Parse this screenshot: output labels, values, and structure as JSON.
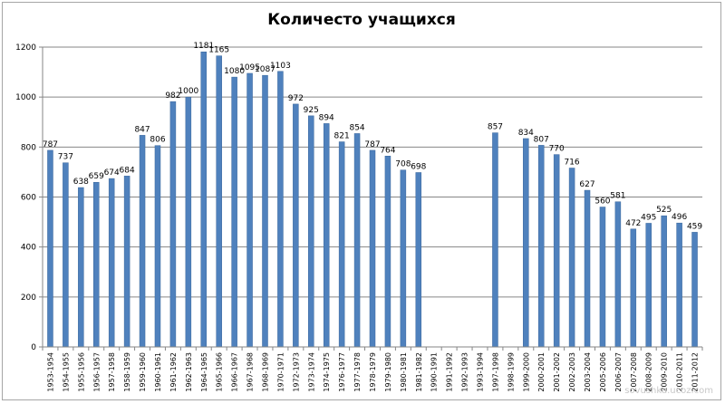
{
  "chart_data": {
    "type": "bar",
    "title": "Количесто учащихся",
    "xlabel": "",
    "ylabel": "",
    "ylim": [
      0,
      1200
    ],
    "yticks": [
      0,
      200,
      400,
      600,
      800,
      1000,
      1200
    ],
    "grid": true,
    "legend": "none",
    "categories": [
      "1953-1954",
      "1954-1955",
      "1955-1956",
      "1956-1957",
      "1957-1958",
      "1958-1959",
      "1959-1960",
      "1960-1961",
      "1961-1962",
      "1962-1963",
      "1964-1965",
      "1965-1966",
      "1966-1967",
      "1967-1968",
      "1968-1969",
      "1970-1971",
      "1972-1973",
      "1973-1974",
      "1974-1975",
      "1976-1977",
      "1977-1978",
      "1978-1979",
      "1979-1980",
      "1980-1981",
      "1981-1982",
      "1990-1991",
      "1991-1992",
      "1992-1993",
      "1993-1994",
      "1997-1998",
      "1998-1999",
      "1999-2000",
      "2000-2001",
      "2001-2002",
      "2002-2003",
      "2003-2004",
      "2005-2006",
      "2006-2007",
      "2007-2008",
      "2008-2009",
      "2009-2010",
      "2010-2011",
      "2011-2012"
    ],
    "values": [
      787,
      737,
      638,
      659,
      674,
      684,
      847,
      806,
      982,
      1000,
      1181,
      1165,
      1080,
      1095,
      1087,
      1103,
      972,
      925,
      894,
      821,
      854,
      787,
      764,
      708,
      698,
      null,
      null,
      null,
      null,
      857,
      null,
      834,
      807,
      770,
      716,
      627,
      560,
      581,
      472,
      495,
      525,
      496,
      459
    ],
    "bar_color": "#4f81bd",
    "grid_color": "#868686"
  },
  "watermark": "sovushka.ucoz.com"
}
